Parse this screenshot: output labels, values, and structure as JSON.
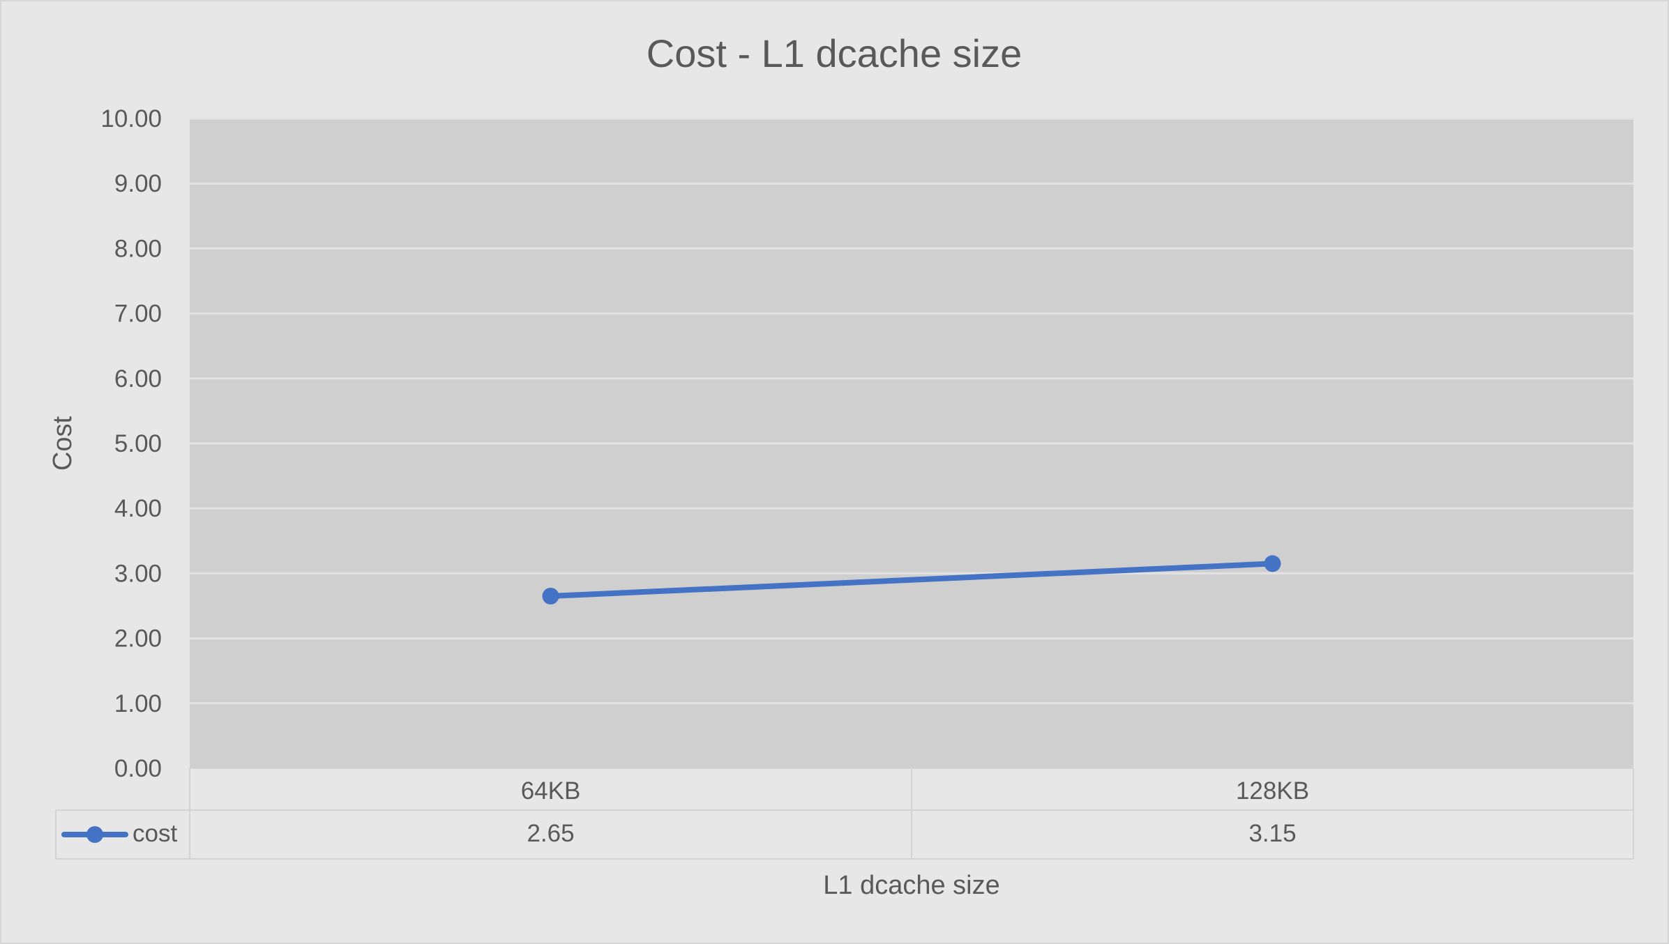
{
  "chart_data": {
    "type": "line",
    "title": "Cost - L1 dcache size",
    "xlabel": "L1 dcache size",
    "ylabel": "Cost",
    "categories": [
      "64KB",
      "128KB"
    ],
    "series": [
      {
        "name": "cost",
        "values": [
          2.65,
          3.15
        ],
        "color": "#4472c4"
      }
    ],
    "ylim": [
      0,
      10
    ],
    "yticks": [
      "0.00",
      "1.00",
      "2.00",
      "3.00",
      "4.00",
      "5.00",
      "6.00",
      "7.00",
      "8.00",
      "9.00",
      "10.00"
    ],
    "data_table": {
      "values": [
        "2.65",
        "3.15"
      ]
    },
    "grid": true,
    "legend": "data-table",
    "colors": {
      "plot_background": "#d0cfd0",
      "chart_background": "#e7e7e7",
      "gridline": "#e3e3e3",
      "text": "#595959"
    }
  }
}
